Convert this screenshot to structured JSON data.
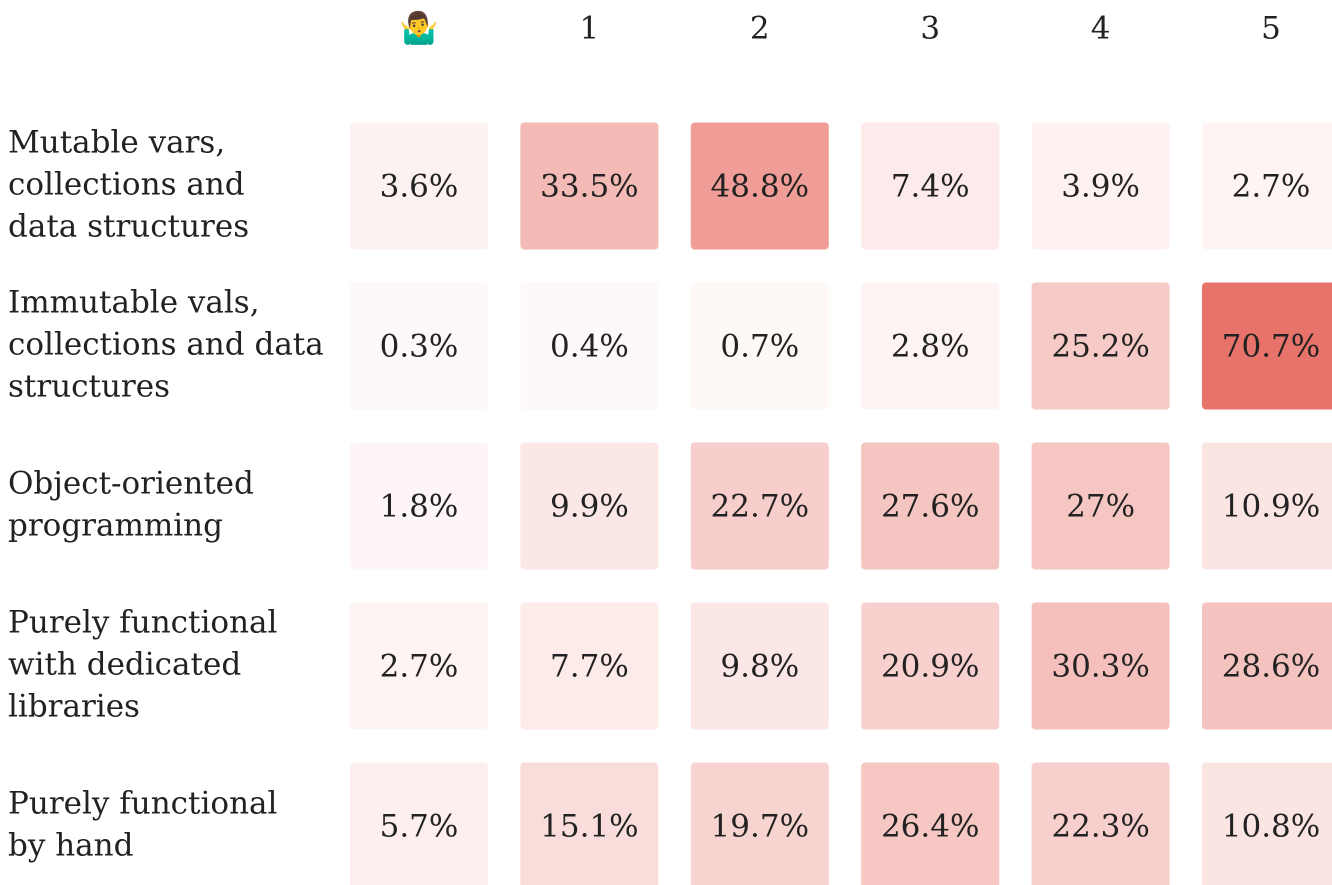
{
  "chart_data": {
    "type": "heatmap",
    "x_categories": [
      "🤷‍♂️",
      "1",
      "2",
      "3",
      "4",
      "5"
    ],
    "y_categories": [
      [
        "Mutable vars,",
        "collections and",
        "data structures"
      ],
      [
        "Immutable vals,",
        "collections and data",
        "structures"
      ],
      [
        "Object-oriented",
        "programming"
      ],
      [
        "Purely functional",
        "with dedicated",
        "libraries"
      ],
      [
        "Purely functional",
        "by hand"
      ]
    ],
    "values": [
      [
        3.6,
        33.5,
        48.8,
        7.4,
        3.9,
        2.7
      ],
      [
        0.3,
        0.4,
        0.7,
        2.8,
        25.2,
        70.7
      ],
      [
        1.8,
        9.9,
        22.7,
        27.6,
        27,
        10.9
      ],
      [
        2.7,
        7.7,
        9.8,
        20.9,
        30.3,
        28.6
      ],
      [
        5.7,
        15.1,
        19.7,
        26.4,
        22.3,
        10.8
      ]
    ],
    "value_labels": [
      [
        "3.6%",
        "33.5%",
        "48.8%",
        "7.4%",
        "3.9%",
        "2.7%"
      ],
      [
        "0.3%",
        "0.4%",
        "0.7%",
        "2.8%",
        "25.2%",
        "70.7%"
      ],
      [
        "1.8%",
        "9.9%",
        "22.7%",
        "27.6%",
        "27%",
        "10.9%"
      ],
      [
        "2.7%",
        "7.7%",
        "9.8%",
        "20.9%",
        "30.3%",
        "28.6%"
      ],
      [
        "5.7%",
        "15.1%",
        "19.7%",
        "26.4%",
        "22.3%",
        "10.8%"
      ]
    ],
    "color": "#e8736a"
  }
}
